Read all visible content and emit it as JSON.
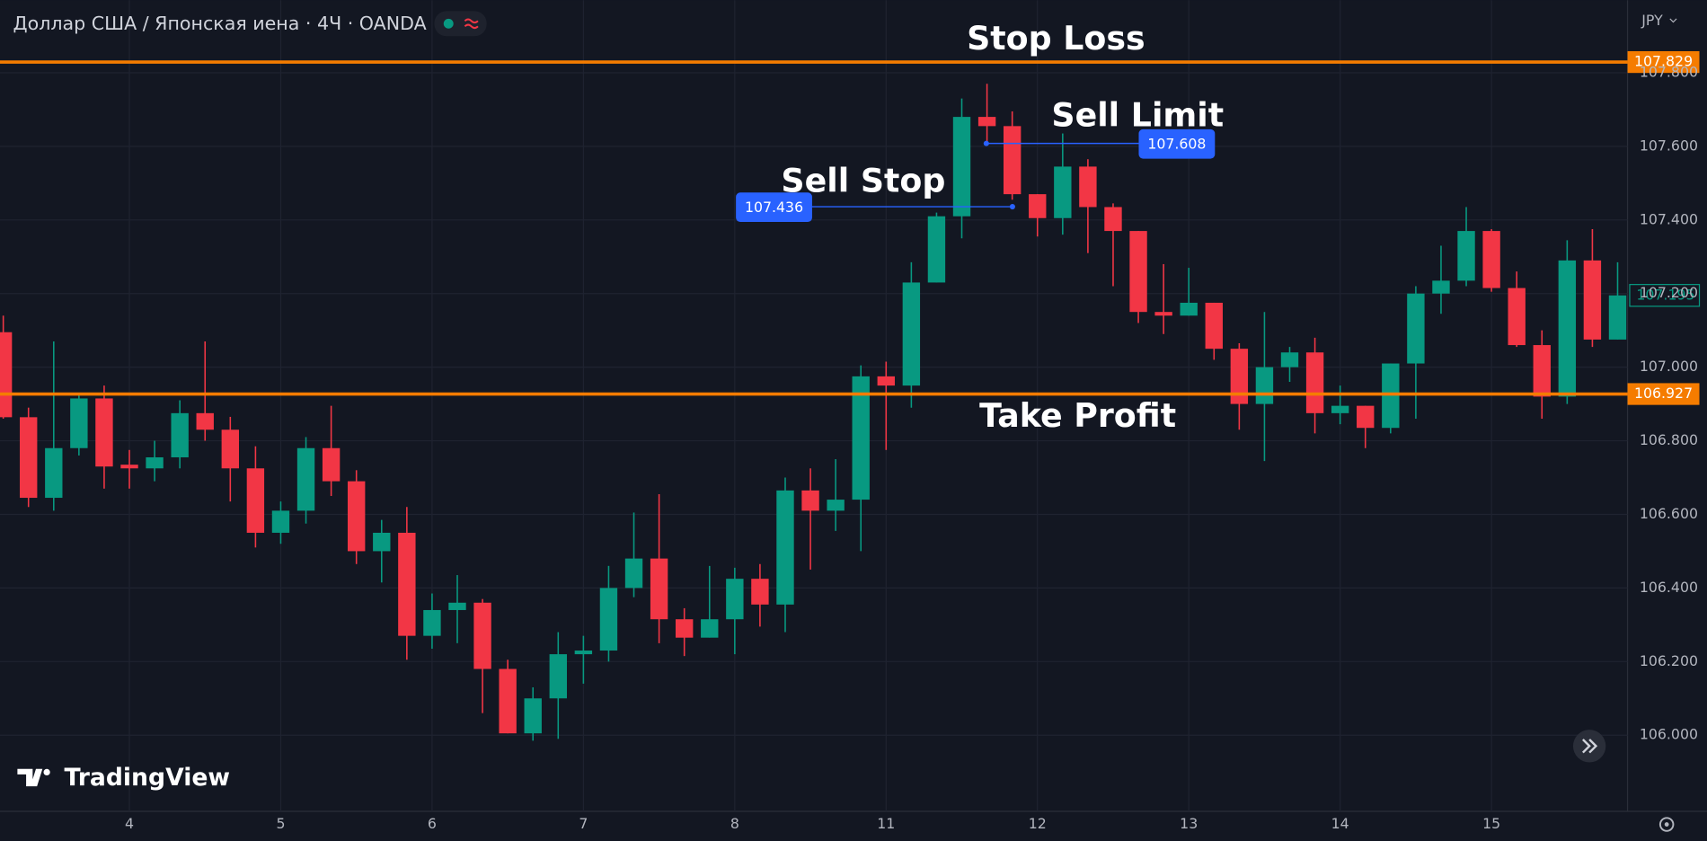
{
  "chart_data": {
    "type": "candlestick",
    "title": "Доллар США / Японская иена · 4Ч · OANDA",
    "currency": "JPY",
    "brand": "TradingView",
    "categories": [
      null,
      null,
      null,
      null,
      null,
      "4",
      null,
      null,
      null,
      null,
      null,
      "5",
      null,
      null,
      null,
      null,
      null,
      "6",
      null,
      null,
      null,
      null,
      null,
      "7",
      null,
      null,
      null,
      null,
      null,
      "8",
      null,
      null,
      null,
      null,
      null,
      "11",
      null,
      null,
      null,
      null,
      null,
      "12",
      null,
      null,
      null,
      null,
      null,
      "13",
      null,
      null,
      null,
      null,
      null,
      "14",
      null,
      null,
      null,
      null,
      null,
      "15",
      null,
      null,
      null,
      null,
      null
    ],
    "open": [
      107.095,
      106.864,
      106.645,
      106.78,
      106.915,
      106.735,
      106.725,
      106.755,
      106.875,
      106.83,
      106.725,
      106.55,
      106.61,
      106.78,
      106.69,
      106.5,
      106.55,
      106.27,
      106.34,
      106.36,
      106.18,
      106.005,
      106.1,
      106.22,
      106.23,
      106.4,
      106.48,
      106.315,
      106.265,
      106.315,
      106.425,
      106.355,
      106.665,
      106.61,
      106.64,
      106.975,
      106.95,
      107.23,
      107.41,
      107.68,
      107.655,
      107.47,
      107.405,
      107.545,
      107.435,
      107.37,
      107.15,
      107.14,
      107.175,
      107.05,
      106.9,
      107.0,
      107.04,
      106.875,
      106.895,
      106.835,
      107.01,
      107.2,
      107.235,
      107.37,
      107.215,
      107.06,
      106.92,
      107.29,
      107.075
    ],
    "high": [
      107.14,
      106.89,
      107.07,
      106.93,
      106.95,
      106.775,
      106.8,
      106.91,
      107.07,
      106.865,
      106.785,
      106.635,
      106.81,
      106.895,
      106.72,
      106.585,
      106.62,
      106.385,
      106.435,
      106.37,
      106.205,
      106.13,
      106.28,
      106.27,
      106.46,
      106.605,
      106.655,
      106.345,
      106.46,
      106.455,
      106.465,
      106.7,
      106.725,
      106.75,
      107.005,
      107.015,
      107.285,
      107.42,
      107.73,
      107.77,
      107.695,
      107.47,
      107.635,
      107.565,
      107.445,
      107.37,
      107.28,
      107.27,
      107.175,
      107.065,
      107.15,
      107.055,
      107.08,
      106.95,
      106.895,
      107.01,
      107.22,
      107.33,
      107.435,
      107.375,
      107.26,
      107.1,
      107.345,
      107.375,
      107.285
    ],
    "low": [
      106.86,
      106.62,
      106.61,
      106.76,
      106.67,
      106.67,
      106.69,
      106.725,
      106.8,
      106.635,
      106.51,
      106.52,
      106.575,
      106.65,
      106.465,
      106.415,
      106.205,
      106.235,
      106.25,
      106.06,
      106.005,
      105.985,
      105.99,
      106.14,
      106.2,
      106.375,
      106.25,
      106.215,
      106.265,
      106.22,
      106.295,
      106.28,
      106.45,
      106.555,
      106.5,
      106.775,
      106.89,
      107.23,
      107.35,
      107.61,
      107.455,
      107.355,
      107.36,
      107.31,
      107.22,
      107.12,
      107.09,
      107.14,
      107.02,
      106.83,
      106.745,
      106.96,
      106.82,
      106.845,
      106.78,
      106.82,
      106.86,
      107.145,
      107.22,
      107.205,
      107.055,
      106.86,
      106.9,
      107.055,
      107.075
    ],
    "close": [
      106.864,
      106.645,
      106.78,
      106.915,
      106.73,
      106.725,
      106.755,
      106.875,
      106.83,
      106.725,
      106.55,
      106.61,
      106.78,
      106.69,
      106.5,
      106.55,
      106.27,
      106.34,
      106.36,
      106.18,
      106.005,
      106.1,
      106.22,
      106.23,
      106.4,
      106.48,
      106.315,
      106.265,
      106.315,
      106.425,
      106.355,
      106.665,
      106.61,
      106.64,
      106.975,
      106.95,
      107.23,
      107.41,
      107.68,
      107.655,
      107.47,
      107.405,
      107.545,
      107.435,
      107.37,
      107.15,
      107.14,
      107.175,
      107.05,
      106.9,
      107.0,
      107.04,
      106.875,
      106.895,
      106.835,
      107.01,
      107.2,
      107.235,
      107.37,
      107.215,
      107.06,
      106.92,
      107.29,
      107.075,
      107.195
    ],
    "up_color": "#089981",
    "down_color": "#f23645",
    "ylim": [
      105.793,
      107.997
    ],
    "yticks": [
      {
        "value": 106,
        "label": "106.000"
      },
      {
        "value": 106.2,
        "label": "106.200"
      },
      {
        "value": 106.4,
        "label": "106.400"
      },
      {
        "value": 106.6,
        "label": "106.600"
      },
      {
        "value": 106.8,
        "label": "106.800"
      },
      {
        "value": 107,
        "label": "107.000"
      },
      {
        "value": 107.2,
        "label": "107.200"
      },
      {
        "value": 107.4,
        "label": "107.400"
      },
      {
        "value": 107.6,
        "label": "107.600"
      },
      {
        "value": 107.8,
        "label": "107.800"
      }
    ],
    "grid": true,
    "levels": [
      {
        "name": "Stop Loss",
        "value": 107.829,
        "color": "#f57c00"
      },
      {
        "name": "Take Profit",
        "value": 106.927,
        "color": "#f57c00"
      }
    ],
    "orders": [
      {
        "name": "Sell Limit",
        "value": 107.608,
        "color": "#2962ff"
      },
      {
        "name": "Sell Stop",
        "value": 107.436,
        "color": "#2962ff"
      }
    ],
    "last_price": 107.195
  }
}
